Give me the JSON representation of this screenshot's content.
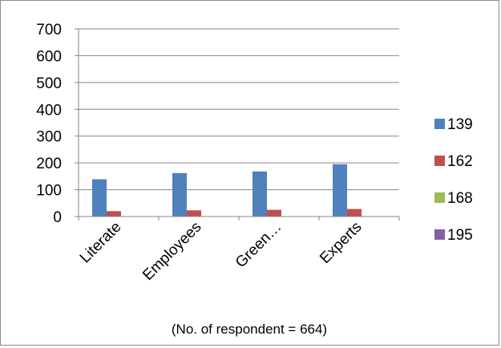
{
  "chart_data": {
    "type": "bar",
    "categories": [
      "Literate",
      "Employees",
      "Green…",
      "Experts"
    ],
    "series": [
      {
        "name": "139",
        "values": [
          139,
          162,
          168,
          195
        ],
        "color": "#4f81bd"
      },
      {
        "name": "162",
        "values": [
          20,
          23,
          25,
          28
        ],
        "color": "#c0504d"
      },
      {
        "name": "168",
        "values": [
          0,
          0,
          0,
          0
        ],
        "color": "#9bbb59"
      },
      {
        "name": "195",
        "values": [
          0,
          0,
          0,
          0
        ],
        "color": "#8064a2"
      }
    ],
    "ylim": [
      0,
      700
    ],
    "yticks": [
      "0",
      "100",
      "200",
      "300",
      "400",
      "500",
      "600",
      "700"
    ],
    "grid": true,
    "legend_position": "right",
    "note": "(No. of respondent = 664)"
  }
}
